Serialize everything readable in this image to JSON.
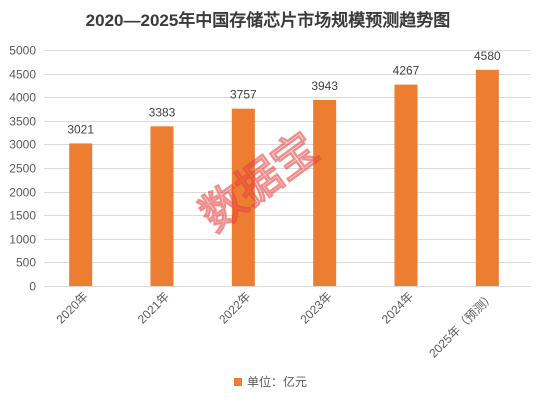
{
  "chart_data": {
    "type": "bar",
    "title": "2020—2025年中国存储芯片市场规模预测趋势图",
    "categories": [
      "2020年",
      "2021年",
      "2022年",
      "2023年",
      "2024年",
      "2025年（预测）"
    ],
    "series": [
      {
        "name": "单位：亿元",
        "values": [
          3021,
          3383,
          3757,
          3943,
          4267,
          4580
        ]
      }
    ],
    "ylim": [
      0,
      5000
    ],
    "yticks": [
      0,
      500,
      1000,
      1500,
      2000,
      2500,
      3000,
      3500,
      4000,
      4500,
      5000
    ],
    "grid": true,
    "legend": "bottom",
    "colors": [
      "#ED7D31"
    ]
  },
  "watermark": "数据宝"
}
